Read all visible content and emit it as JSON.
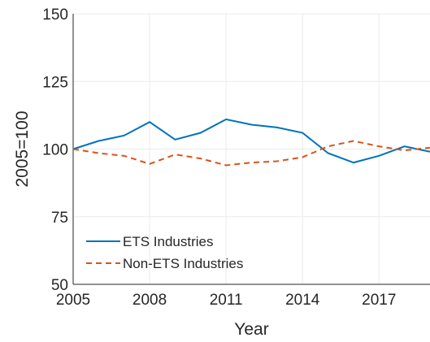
{
  "chart_data": {
    "type": "line",
    "x_label": "Year",
    "y_label": "2005=100",
    "x": [
      2005,
      2006,
      2007,
      2008,
      2009,
      2010,
      2011,
      2012,
      2013,
      2014,
      2015,
      2016,
      2017,
      2018,
      2019
    ],
    "series": [
      {
        "name": "ETS Industries",
        "color": "#0072bd",
        "dash": "solid",
        "values": [
          100,
          103,
          105,
          110,
          103.5,
          106,
          111,
          109,
          108,
          106,
          98.5,
          95,
          97.5,
          101,
          99
        ]
      },
      {
        "name": "Non-ETS Industries",
        "color": "#d95319",
        "dash": "dashed",
        "values": [
          100,
          98.5,
          97.5,
          94.5,
          98,
          96.5,
          94,
          95,
          95.5,
          97,
          101,
          103,
          101,
          99.5,
          100.5
        ]
      }
    ],
    "xlim": [
      2005,
      2019
    ],
    "xticks": [
      2005,
      2008,
      2011,
      2014,
      2017
    ],
    "ylim": [
      50,
      150
    ],
    "yticks": [
      50,
      75,
      100,
      125,
      150
    ],
    "grid": true,
    "legend": "lower-left"
  }
}
